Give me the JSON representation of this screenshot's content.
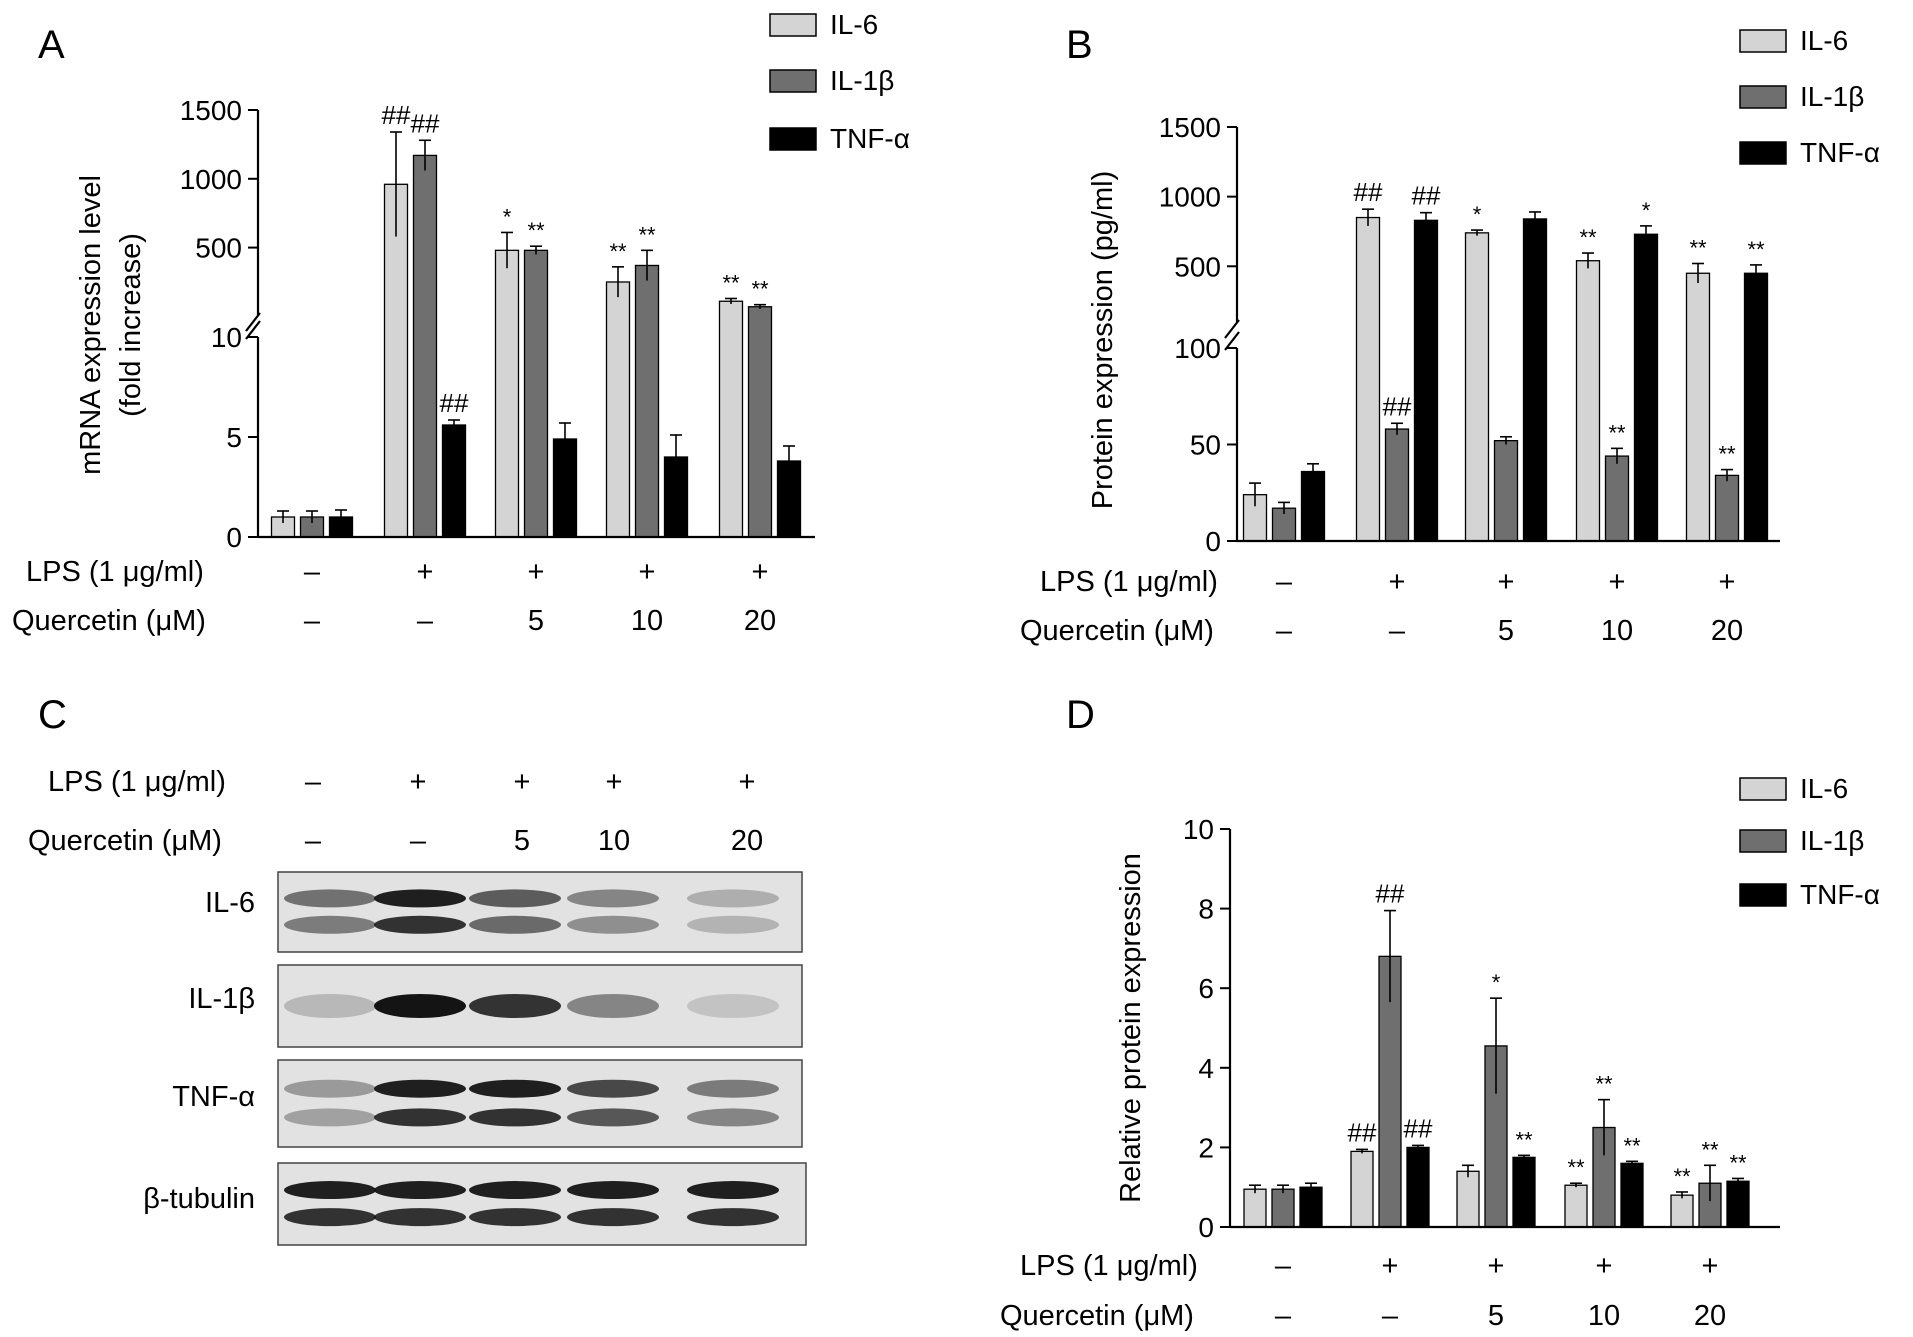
{
  "colors": {
    "il6": "#d4d4d4",
    "il1b": "#6f6f6f",
    "tnf": "#000000",
    "axis": "#000000",
    "blot_bg": "#e2e2e2",
    "blot_band": "#141414"
  },
  "panel_labels": {
    "a": "A",
    "b": "B",
    "c": "C",
    "d": "D"
  },
  "treatments": {
    "lps_label": "LPS (1 μg/ml)",
    "quercetin_label": "Quercetin (μM)",
    "lps": [
      "–",
      "+",
      "+",
      "+",
      "+"
    ],
    "quercetin": [
      "–",
      "–",
      "5",
      "10",
      "20"
    ]
  },
  "legend": [
    "IL-6",
    "IL-1β",
    "TNF-α"
  ],
  "blot": {
    "rows": [
      "IL-6",
      "IL-1β",
      "TNF-α",
      "β-tubulin"
    ],
    "intensity": [
      [
        0.55,
        0.95,
        0.65,
        0.45,
        0.25
      ],
      [
        0.2,
        1.0,
        0.85,
        0.45,
        0.15
      ],
      [
        0.35,
        0.95,
        0.95,
        0.75,
        0.5
      ],
      [
        0.95,
        0.95,
        0.95,
        0.95,
        0.95
      ]
    ]
  },
  "chart_data": [
    {
      "panel": "A",
      "type": "bar",
      "ylabel": [
        "mRNA expression level",
        "(fold increase)"
      ],
      "categories": [
        "1",
        "2",
        "3",
        "4",
        "5"
      ],
      "y_axis_break": true,
      "ylim_lower": [
        0,
        10
      ],
      "ylim_upper": [
        10,
        1500
      ],
      "yticks_lower": [
        0,
        5,
        10
      ],
      "yticks_upper": [
        500,
        1000,
        1500
      ],
      "series": [
        {
          "name": "IL-6",
          "values": [
            1.0,
            960,
            480,
            250,
            110
          ],
          "errors": [
            0.3,
            380,
            130,
            110,
            20
          ],
          "annotations": [
            "",
            "##",
            "*",
            "**",
            "**"
          ]
        },
        {
          "name": "IL-1β",
          "values": [
            1.0,
            1170,
            480,
            370,
            70
          ],
          "errors": [
            0.3,
            110,
            30,
            110,
            15
          ],
          "annotations": [
            "",
            "##",
            "**",
            "**",
            "**"
          ]
        },
        {
          "name": "TNF-α",
          "values": [
            1.0,
            5.6,
            4.9,
            4.0,
            3.8
          ],
          "errors": [
            0.35,
            0.25,
            0.8,
            1.1,
            0.75
          ],
          "annotations": [
            "",
            "##",
            "",
            "",
            ""
          ]
        }
      ]
    },
    {
      "panel": "B",
      "type": "bar",
      "ylabel": [
        "Protein expression (pg/ml)"
      ],
      "categories": [
        "1",
        "2",
        "3",
        "4",
        "5"
      ],
      "y_axis_break": true,
      "ylim_lower": [
        0,
        100
      ],
      "ylim_upper": [
        100,
        1500
      ],
      "yticks_lower": [
        0,
        50,
        100
      ],
      "yticks_upper": [
        500,
        1000,
        1500
      ],
      "series": [
        {
          "name": "IL-6",
          "values": [
            24,
            850,
            740,
            540,
            450
          ],
          "errors": [
            6,
            60,
            20,
            55,
            70
          ],
          "annotations": [
            "",
            "##",
            "*",
            "**",
            "**"
          ]
        },
        {
          "name": "IL-1β",
          "values": [
            17,
            58,
            52,
            44,
            34
          ],
          "errors": [
            3,
            3,
            2,
            4,
            3
          ],
          "annotations": [
            "",
            "##",
            "",
            "**",
            "**"
          ]
        },
        {
          "name": "TNF-α",
          "values": [
            36,
            830,
            840,
            730,
            450
          ],
          "errors": [
            4,
            55,
            50,
            60,
            60
          ],
          "annotations": [
            "",
            "##",
            "",
            "*",
            "**"
          ]
        }
      ]
    },
    {
      "panel": "D",
      "type": "bar",
      "ylabel": [
        "Relative protein expression"
      ],
      "categories": [
        "1",
        "2",
        "3",
        "4",
        "5"
      ],
      "y_axis_break": false,
      "ylim": [
        0,
        10
      ],
      "yticks": [
        0,
        2,
        4,
        6,
        8,
        10
      ],
      "series": [
        {
          "name": "IL-6",
          "values": [
            0.95,
            1.9,
            1.4,
            1.05,
            0.8
          ],
          "errors": [
            0.1,
            0.05,
            0.15,
            0.05,
            0.08
          ],
          "annotations": [
            "",
            "##",
            "",
            "**",
            "**"
          ]
        },
        {
          "name": "IL-1β",
          "values": [
            0.95,
            6.8,
            4.55,
            2.5,
            1.1
          ],
          "errors": [
            0.1,
            1.15,
            1.2,
            0.7,
            0.45
          ],
          "annotations": [
            "",
            "##",
            "*",
            "**",
            "**"
          ]
        },
        {
          "name": "TNF-α",
          "values": [
            1.0,
            2.0,
            1.75,
            1.6,
            1.15
          ],
          "errors": [
            0.1,
            0.05,
            0.05,
            0.05,
            0.07
          ],
          "annotations": [
            "",
            "##",
            "**",
            "**",
            "**"
          ]
        }
      ]
    }
  ]
}
